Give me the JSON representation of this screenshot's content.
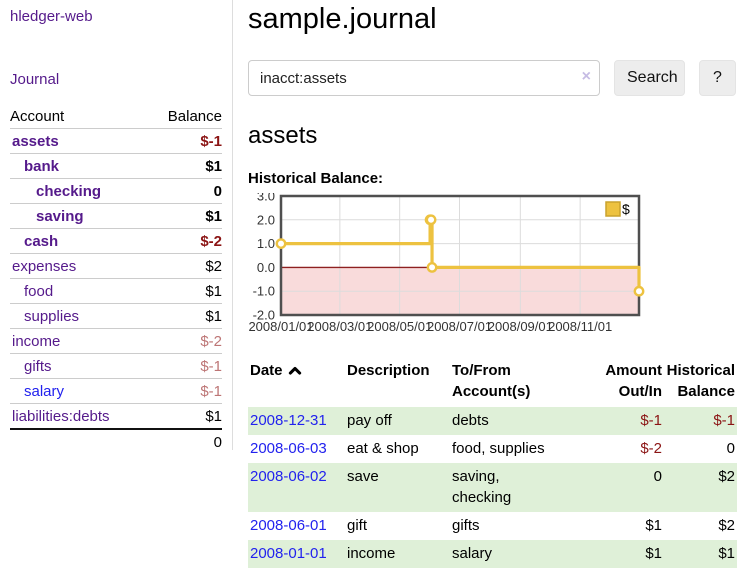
{
  "colors": {
    "purple": "#551A8B",
    "blue": "#2222EE",
    "black": "#000000",
    "dark_red": "#8B1414",
    "muted_red": "#BD7575",
    "row_green": "#DFF0D8",
    "chart_gold": "#EDC240",
    "chart_gold_border": "#C9A22E",
    "chart_pink": "#F9DBDB",
    "chart_zero_line": "#8E2020",
    "chart_grid": "#DCDCDC",
    "chart_border": "#4F4F4F"
  },
  "sidebar": {
    "app_title": "hledger-web",
    "journal_link": "Journal",
    "accounts_header": {
      "account": "Account",
      "balance": "Balance"
    },
    "accounts": [
      {
        "name": "assets",
        "balance": "$-1",
        "depth": 1,
        "bold": true,
        "name_color": "purple",
        "balance_color": "dark_red"
      },
      {
        "name": "bank",
        "balance": "$1",
        "depth": 2,
        "bold": true,
        "name_color": "purple",
        "balance_color": "black"
      },
      {
        "name": "checking",
        "balance": "0",
        "depth": 3,
        "bold": true,
        "name_color": "purple",
        "balance_color": "black"
      },
      {
        "name": "saving",
        "balance": "$1",
        "depth": 3,
        "bold": true,
        "name_color": "purple",
        "balance_color": "black"
      },
      {
        "name": "cash",
        "balance": "$-2",
        "depth": 2,
        "bold": true,
        "name_color": "purple",
        "balance_color": "dark_red"
      },
      {
        "name": "expenses",
        "balance": "$2",
        "depth": 1,
        "bold": false,
        "name_color": "purple",
        "balance_color": "black"
      },
      {
        "name": "food",
        "balance": "$1",
        "depth": 2,
        "bold": false,
        "name_color": "purple",
        "balance_color": "black"
      },
      {
        "name": "supplies",
        "balance": "$1",
        "depth": 2,
        "bold": false,
        "name_color": "purple",
        "balance_color": "black"
      },
      {
        "name": "income",
        "balance": "$-2",
        "depth": 1,
        "bold": false,
        "name_color": "purple",
        "balance_color": "muted_red"
      },
      {
        "name": "gifts",
        "balance": "$-1",
        "depth": 2,
        "bold": false,
        "name_color": "purple",
        "balance_color": "muted_red"
      },
      {
        "name": "salary",
        "balance": "$-1",
        "depth": 2,
        "bold": false,
        "name_color": "blue",
        "balance_color": "muted_red"
      },
      {
        "name": "liabilities:debts",
        "balance": "$1",
        "depth": 1,
        "bold": false,
        "name_color": "purple",
        "balance_color": "black"
      }
    ],
    "total": "0"
  },
  "header": {
    "title": "sample.journal"
  },
  "search": {
    "value": "inacct:assets",
    "clear_icon": "×",
    "button_label": "Search",
    "help_label": "?"
  },
  "account_page": {
    "heading": "assets",
    "chart_title": "Historical Balance:"
  },
  "chart_data": {
    "type": "line",
    "step": true,
    "title": "Historical Balance",
    "series": [
      {
        "name": "$",
        "color": "#EDC240",
        "points": [
          {
            "date": "2008-01-01",
            "value": 1
          },
          {
            "date": "2008-06-01",
            "value": 2
          },
          {
            "date": "2008-06-02",
            "value": 2
          },
          {
            "date": "2008-06-03",
            "value": 0
          },
          {
            "date": "2008-12-31",
            "value": -1
          }
        ]
      }
    ],
    "x_ticks": [
      "2008/01/01",
      "2008/03/01",
      "2008/05/01",
      "2008/07/01",
      "2008/09/01",
      "2008/11/01"
    ],
    "x_range": [
      "2008-01-01",
      "2008-12-31"
    ],
    "y_ticks": [
      3.0,
      2.0,
      1.0,
      0.0,
      -1.0,
      -2.0
    ],
    "ylim": [
      -2,
      3
    ],
    "legend": "$",
    "legend_position": "top-right",
    "grid": true,
    "negative_region_shaded": true
  },
  "register": {
    "columns": [
      {
        "label": "Date",
        "sorted_asc": true,
        "align": "left"
      },
      {
        "label": "Description",
        "align": "left"
      },
      {
        "label": "To/From\nAccount(s)",
        "align": "left"
      },
      {
        "label": "Amount\nOut/In",
        "align": "right"
      },
      {
        "label": "Historical\nBalance",
        "align": "right"
      }
    ],
    "rows": [
      {
        "date": "2008-12-31",
        "description": "pay off",
        "accounts": "debts",
        "amount": "$-1",
        "balance": "$-1",
        "amount_color": "dark_red",
        "balance_color": "dark_red",
        "shade": true
      },
      {
        "date": "2008-06-03",
        "description": "eat & shop",
        "accounts": "food, supplies",
        "amount": "$-2",
        "balance": "0",
        "amount_color": "dark_red",
        "balance_color": "black",
        "shade": false
      },
      {
        "date": "2008-06-02",
        "description": "save",
        "accounts": "saving,\nchecking",
        "amount": "0",
        "balance": "$2",
        "amount_color": "black",
        "balance_color": "black",
        "shade": true
      },
      {
        "date": "2008-06-01",
        "description": "gift",
        "accounts": "gifts",
        "amount": "$1",
        "balance": "$2",
        "amount_color": "black",
        "balance_color": "black",
        "shade": false
      },
      {
        "date": "2008-01-01",
        "description": "income",
        "accounts": "salary",
        "amount": "$1",
        "balance": "$1",
        "amount_color": "black",
        "balance_color": "black",
        "shade": true
      }
    ]
  }
}
